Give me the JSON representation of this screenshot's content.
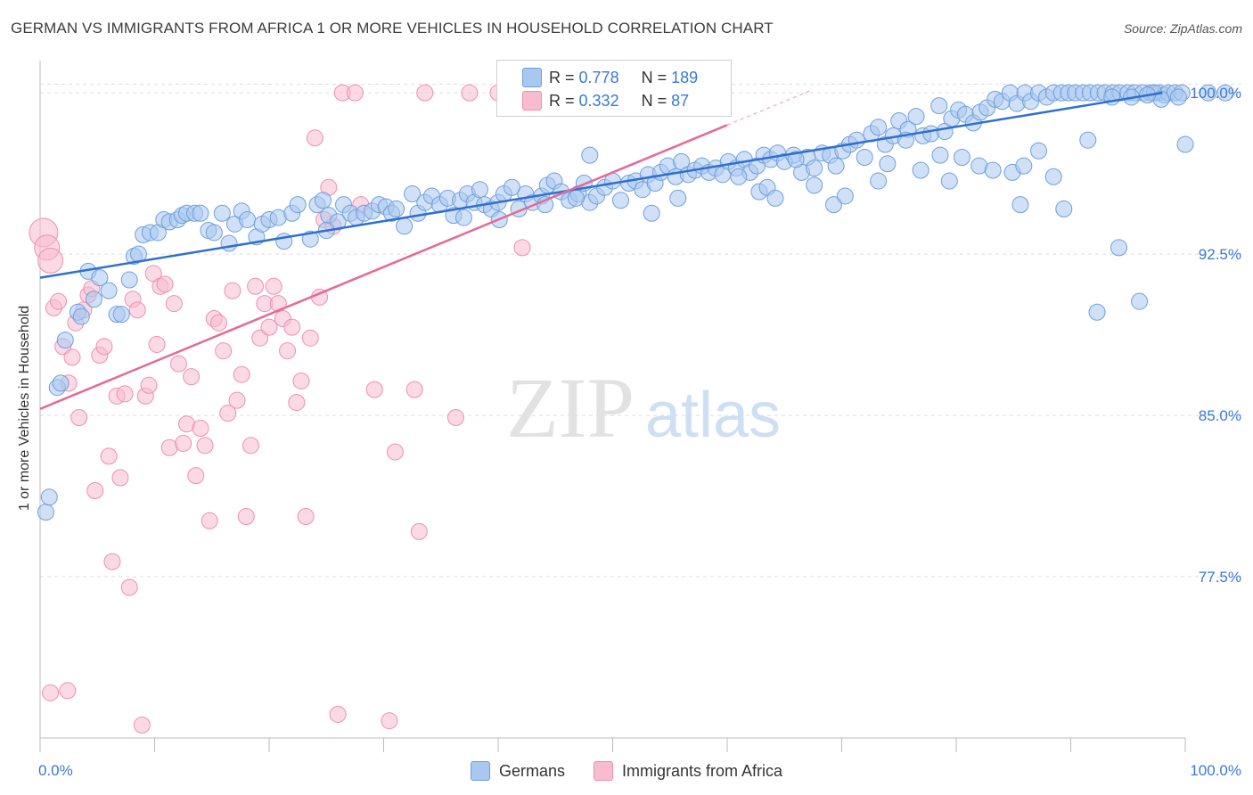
{
  "header": {
    "title": "GERMAN VS IMMIGRANTS FROM AFRICA 1 OR MORE VEHICLES IN HOUSEHOLD CORRELATION CHART",
    "source": "Source: ZipAtlas.com"
  },
  "watermark": {
    "zip": "ZIP",
    "atlas": "atlas"
  },
  "legend_top": {
    "r_label": "R =",
    "n_label": "N =",
    "rows": [
      {
        "r": "0.778",
        "n": "189"
      },
      {
        "r": "0.332",
        "n": "87"
      }
    ]
  },
  "legend_bottom": [
    "Germans",
    "Immigrants from Africa"
  ],
  "colors": {
    "blue_fill": "#a9c8f0",
    "blue_stroke": "#6f9fdc",
    "blue_line": "#2f6fd0",
    "pink_fill": "#f7bcd0",
    "pink_stroke": "#ee8fb0",
    "pink_line": "#e46a96",
    "tick_label": "#3a78d6",
    "grid": "#dddddd"
  },
  "chart_data": {
    "type": "scatter",
    "title": "GERMAN VS IMMIGRANTS FROM AFRICA 1 OR MORE VEHICLES IN HOUSEHOLD CORRELATION CHART",
    "xlabel": "",
    "ylabel": "1 or more Vehicles in Household",
    "xlim": [
      0,
      100
    ],
    "ylim": [
      70,
      101
    ],
    "x_tick_labels": [
      "0.0%",
      "100.0%"
    ],
    "y_ticks": [
      77.5,
      85.0,
      92.5,
      100.0
    ],
    "y_tick_labels": [
      "77.5%",
      "85.0%",
      "92.5%",
      "100.0%"
    ],
    "grid": true,
    "legend_placement": "top-center",
    "series": [
      {
        "name": "Germans",
        "r": 0.778,
        "n": 189,
        "trend": {
          "x": [
            0,
            98
          ],
          "y": [
            91.4,
            100.0
          ]
        },
        "points": [
          [
            0.5,
            80.5
          ],
          [
            0.8,
            81.2
          ],
          [
            1.5,
            86.3
          ],
          [
            1.8,
            86.5
          ],
          [
            2.2,
            88.5
          ],
          [
            3.3,
            89.8
          ],
          [
            3.6,
            89.6
          ],
          [
            4.2,
            91.7
          ],
          [
            4.7,
            90.4
          ],
          [
            5.2,
            91.4
          ],
          [
            6.0,
            90.8
          ],
          [
            6.7,
            89.7
          ],
          [
            7.1,
            89.7
          ],
          [
            7.8,
            91.3
          ],
          [
            8.2,
            92.4
          ],
          [
            8.6,
            92.5
          ],
          [
            9.0,
            93.4
          ],
          [
            9.6,
            93.5
          ],
          [
            10.3,
            93.5
          ],
          [
            10.8,
            94.1
          ],
          [
            11.3,
            94.0
          ],
          [
            12.0,
            94.1
          ],
          [
            12.4,
            94.3
          ],
          [
            12.8,
            94.4
          ],
          [
            13.5,
            94.4
          ],
          [
            14.0,
            94.4
          ],
          [
            14.7,
            93.6
          ],
          [
            15.2,
            93.5
          ],
          [
            15.9,
            94.4
          ],
          [
            16.5,
            93.0
          ],
          [
            17.0,
            93.9
          ],
          [
            17.6,
            94.5
          ],
          [
            18.1,
            94.1
          ],
          [
            18.9,
            93.3
          ],
          [
            19.4,
            93.9
          ],
          [
            20.0,
            94.1
          ],
          [
            20.8,
            94.2
          ],
          [
            21.3,
            93.1
          ],
          [
            22.0,
            94.4
          ],
          [
            22.5,
            94.8
          ],
          [
            23.6,
            93.2
          ],
          [
            24.2,
            94.8
          ],
          [
            24.7,
            95.0
          ],
          [
            25.2,
            94.3
          ],
          [
            26.0,
            94.0
          ],
          [
            26.5,
            94.8
          ],
          [
            27.1,
            94.4
          ],
          [
            27.6,
            94.2
          ],
          [
            28.3,
            94.4
          ],
          [
            29.0,
            94.5
          ],
          [
            29.6,
            94.8
          ],
          [
            30.2,
            94.7
          ],
          [
            30.7,
            94.4
          ],
          [
            31.1,
            94.6
          ],
          [
            31.8,
            93.8
          ],
          [
            32.5,
            95.3
          ],
          [
            33.0,
            94.4
          ],
          [
            33.6,
            94.9
          ],
          [
            34.2,
            95.2
          ],
          [
            34.9,
            94.8
          ],
          [
            35.6,
            95.1
          ],
          [
            36.1,
            94.3
          ],
          [
            36.7,
            95.0
          ],
          [
            37.3,
            95.3
          ],
          [
            37.9,
            94.9
          ],
          [
            38.4,
            95.5
          ],
          [
            38.8,
            94.8
          ],
          [
            39.4,
            94.6
          ],
          [
            40.0,
            94.9
          ],
          [
            40.5,
            95.3
          ],
          [
            41.2,
            95.6
          ],
          [
            41.8,
            94.6
          ],
          [
            42.4,
            95.3
          ],
          [
            43.0,
            94.9
          ],
          [
            43.8,
            95.2
          ],
          [
            44.3,
            95.7
          ],
          [
            44.9,
            95.9
          ],
          [
            45.5,
            95.4
          ],
          [
            46.2,
            95.0
          ],
          [
            47.0,
            95.3
          ],
          [
            47.5,
            95.8
          ],
          [
            48.0,
            94.9
          ],
          [
            48.6,
            95.2
          ],
          [
            49.3,
            95.6
          ],
          [
            50.0,
            95.9
          ],
          [
            50.7,
            95.0
          ],
          [
            51.4,
            95.8
          ],
          [
            52.0,
            95.9
          ],
          [
            52.6,
            95.5
          ],
          [
            53.1,
            96.2
          ],
          [
            53.7,
            95.8
          ],
          [
            54.2,
            96.3
          ],
          [
            54.8,
            96.6
          ],
          [
            55.5,
            96.1
          ],
          [
            56.0,
            96.8
          ],
          [
            56.6,
            96.2
          ],
          [
            57.2,
            96.4
          ],
          [
            57.8,
            96.6
          ],
          [
            58.4,
            96.3
          ],
          [
            59.0,
            96.5
          ],
          [
            59.6,
            96.2
          ],
          [
            60.1,
            96.8
          ],
          [
            60.8,
            96.5
          ],
          [
            61.5,
            96.9
          ],
          [
            62.0,
            96.3
          ],
          [
            62.6,
            96.6
          ],
          [
            63.2,
            97.1
          ],
          [
            63.8,
            96.9
          ],
          [
            64.4,
            97.2
          ],
          [
            65.0,
            96.8
          ],
          [
            65.8,
            97.1
          ],
          [
            66.5,
            96.3
          ],
          [
            67.0,
            97.0
          ],
          [
            67.6,
            96.5
          ],
          [
            68.3,
            97.2
          ],
          [
            69.0,
            97.1
          ],
          [
            69.5,
            96.6
          ],
          [
            70.1,
            97.3
          ],
          [
            70.7,
            97.6
          ],
          [
            71.3,
            97.8
          ],
          [
            72.0,
            97.0
          ],
          [
            72.6,
            98.1
          ],
          [
            73.2,
            98.4
          ],
          [
            73.8,
            97.6
          ],
          [
            74.5,
            98.0
          ],
          [
            75.0,
            98.7
          ],
          [
            75.8,
            98.3
          ],
          [
            76.5,
            98.9
          ],
          [
            77.1,
            98.0
          ],
          [
            77.8,
            98.1
          ],
          [
            78.5,
            99.4
          ],
          [
            79.0,
            98.2
          ],
          [
            79.6,
            98.8
          ],
          [
            80.2,
            99.2
          ],
          [
            80.8,
            99.0
          ],
          [
            81.5,
            98.6
          ],
          [
            82.1,
            99.1
          ],
          [
            82.7,
            99.3
          ],
          [
            83.4,
            99.7
          ],
          [
            84.0,
            99.6
          ],
          [
            84.7,
            100.0
          ],
          [
            85.3,
            99.5
          ],
          [
            86.0,
            100.0
          ],
          [
            86.5,
            99.6
          ],
          [
            87.2,
            100.0
          ],
          [
            87.9,
            99.8
          ],
          [
            88.5,
            100.0
          ],
          [
            89.2,
            100.0
          ],
          [
            89.8,
            100.0
          ],
          [
            90.4,
            100.0
          ],
          [
            91.1,
            100.0
          ],
          [
            91.7,
            100.0
          ],
          [
            92.4,
            100.0
          ],
          [
            93.0,
            100.0
          ],
          [
            93.7,
            100.0
          ],
          [
            94.3,
            100.0
          ],
          [
            95.0,
            100.0
          ],
          [
            95.6,
            100.0
          ],
          [
            96.3,
            100.0
          ],
          [
            97.0,
            100.0
          ],
          [
            97.7,
            100.0
          ],
          [
            98.2,
            99.9
          ],
          [
            25.0,
            93.6
          ],
          [
            37.0,
            94.2
          ],
          [
            40.1,
            94.1
          ],
          [
            44.1,
            94.8
          ],
          [
            46.8,
            95.1
          ],
          [
            48.0,
            97.1
          ],
          [
            53.4,
            94.4
          ],
          [
            55.7,
            95.1
          ],
          [
            61.0,
            96.1
          ],
          [
            62.8,
            95.4
          ],
          [
            63.5,
            95.6
          ],
          [
            64.2,
            95.1
          ],
          [
            66.0,
            96.9
          ],
          [
            67.6,
            95.7
          ],
          [
            69.3,
            94.8
          ],
          [
            70.3,
            95.2
          ],
          [
            73.2,
            95.9
          ],
          [
            74.0,
            96.7
          ],
          [
            75.6,
            97.8
          ],
          [
            76.9,
            96.4
          ],
          [
            78.6,
            97.1
          ],
          [
            79.4,
            95.9
          ],
          [
            80.5,
            97.0
          ],
          [
            82.0,
            96.6
          ],
          [
            83.2,
            96.4
          ],
          [
            84.9,
            96.3
          ],
          [
            85.6,
            94.8
          ],
          [
            85.9,
            96.6
          ],
          [
            87.2,
            97.3
          ],
          [
            88.5,
            96.1
          ],
          [
            89.4,
            94.6
          ],
          [
            91.5,
            97.8
          ],
          [
            92.3,
            89.8
          ],
          [
            94.2,
            92.8
          ],
          [
            96.0,
            90.3
          ],
          [
            97.3,
            100.0
          ],
          [
            98.5,
            100.0
          ],
          [
            99.1,
            100.0
          ],
          [
            99.7,
            100.0
          ],
          [
            100.0,
            97.6
          ],
          [
            102.0,
            100.0
          ],
          [
            103.5,
            100.0
          ],
          [
            99.4,
            99.8
          ],
          [
            97.9,
            99.7
          ],
          [
            96.7,
            99.9
          ],
          [
            95.3,
            99.8
          ],
          [
            93.6,
            99.8
          ]
        ]
      },
      {
        "name": "Immigrants from Africa",
        "r": 0.332,
        "n": 87,
        "trend": {
          "x": [
            0,
            60
          ],
          "y": [
            85.3,
            98.5
          ]
        },
        "points": [
          [
            0.3,
            93.5
          ],
          [
            0.6,
            92.8
          ],
          [
            0.9,
            92.2
          ],
          [
            1.2,
            90.0
          ],
          [
            1.6,
            90.3
          ],
          [
            2.0,
            88.2
          ],
          [
            2.5,
            86.5
          ],
          [
            2.8,
            87.7
          ],
          [
            3.1,
            89.3
          ],
          [
            3.4,
            84.9
          ],
          [
            3.8,
            89.9
          ],
          [
            4.2,
            90.6
          ],
          [
            4.5,
            90.9
          ],
          [
            4.8,
            81.5
          ],
          [
            5.2,
            87.8
          ],
          [
            5.6,
            88.2
          ],
          [
            6.0,
            83.1
          ],
          [
            6.3,
            78.2
          ],
          [
            6.7,
            85.9
          ],
          [
            7.0,
            82.1
          ],
          [
            7.4,
            86.0
          ],
          [
            7.8,
            77.0
          ],
          [
            8.1,
            90.4
          ],
          [
            8.5,
            89.9
          ],
          [
            8.9,
            70.6
          ],
          [
            9.2,
            85.9
          ],
          [
            9.5,
            86.4
          ],
          [
            9.9,
            91.6
          ],
          [
            10.2,
            88.3
          ],
          [
            10.5,
            91.0
          ],
          [
            10.9,
            91.1
          ],
          [
            11.3,
            83.5
          ],
          [
            11.7,
            90.2
          ],
          [
            12.1,
            87.4
          ],
          [
            12.5,
            83.7
          ],
          [
            12.8,
            84.6
          ],
          [
            13.2,
            86.8
          ],
          [
            13.6,
            82.2
          ],
          [
            14.0,
            84.4
          ],
          [
            14.4,
            83.6
          ],
          [
            14.8,
            80.1
          ],
          [
            15.2,
            89.5
          ],
          [
            15.6,
            89.3
          ],
          [
            16.0,
            88.0
          ],
          [
            16.4,
            85.1
          ],
          [
            16.8,
            90.8
          ],
          [
            17.2,
            85.7
          ],
          [
            17.6,
            86.9
          ],
          [
            18.0,
            80.3
          ],
          [
            18.4,
            83.6
          ],
          [
            18.8,
            91.0
          ],
          [
            19.2,
            88.6
          ],
          [
            19.6,
            90.2
          ],
          [
            20.0,
            89.1
          ],
          [
            20.4,
            91.0
          ],
          [
            20.8,
            90.2
          ],
          [
            21.2,
            89.5
          ],
          [
            21.6,
            88.0
          ],
          [
            22.0,
            89.1
          ],
          [
            22.4,
            85.6
          ],
          [
            22.8,
            86.6
          ],
          [
            23.2,
            80.3
          ],
          [
            23.6,
            88.6
          ],
          [
            24.0,
            97.9
          ],
          [
            24.4,
            90.5
          ],
          [
            24.8,
            94.1
          ],
          [
            25.2,
            95.6
          ],
          [
            25.6,
            93.8
          ],
          [
            26.0,
            71.1
          ],
          [
            26.4,
            100.0
          ],
          [
            27.5,
            100.0
          ],
          [
            28.0,
            94.8
          ],
          [
            29.2,
            86.2
          ],
          [
            30.5,
            70.8
          ],
          [
            31.0,
            83.3
          ],
          [
            32.7,
            86.2
          ],
          [
            33.1,
            79.6
          ],
          [
            33.6,
            100.0
          ],
          [
            36.3,
            84.9
          ],
          [
            37.5,
            100.0
          ],
          [
            40.0,
            100.0
          ],
          [
            42.1,
            92.8
          ],
          [
            47.6,
            100.0
          ],
          [
            51.0,
            100.0
          ],
          [
            55.5,
            100.0
          ],
          [
            0.9,
            72.1
          ],
          [
            2.4,
            72.2
          ]
        ]
      }
    ]
  }
}
